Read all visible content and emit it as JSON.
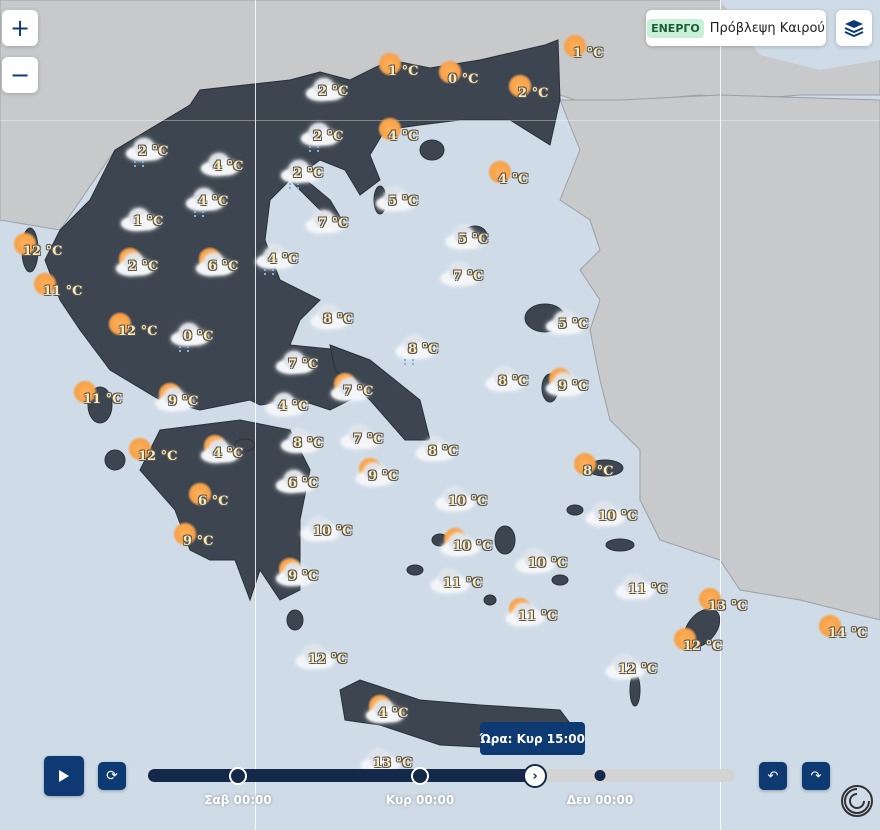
{
  "map": {
    "controls": {
      "zoom_in": "+",
      "zoom_out": "−"
    },
    "status_panel": {
      "badge": "ΕΝΕΡΓΟ",
      "title": "Πρόβλεψη Καιρού",
      "badge_color": "#c8f0d6"
    },
    "layers_icon": "layers-icon",
    "colors": {
      "sea": "#cfdce8",
      "greece_land": "#3d4650",
      "neighbor_land": "#c8c9cb",
      "accent": "#0d3a73"
    },
    "weather": [
      {
        "t": "1 °C",
        "icon": "sun"
      },
      {
        "t": "0 °C",
        "icon": "sun"
      },
      {
        "t": "2 °C",
        "icon": "sun"
      },
      {
        "t": "1 °C",
        "icon": "sun"
      },
      {
        "t": "2 °C",
        "icon": "cloud"
      },
      {
        "t": "2 °C",
        "icon": "rain"
      },
      {
        "t": "4 °C",
        "icon": "sun"
      },
      {
        "t": "2 °C",
        "icon": "rain"
      },
      {
        "t": "4 °C",
        "icon": "cloud"
      },
      {
        "t": "2 °C",
        "icon": "rain"
      },
      {
        "t": "5 °C",
        "icon": "cloud"
      },
      {
        "t": "4 °C",
        "icon": "sun"
      },
      {
        "t": "4 °C",
        "icon": "rain"
      },
      {
        "t": "1 °C",
        "icon": "cloud"
      },
      {
        "t": "7 °C",
        "icon": "cloud"
      },
      {
        "t": "5 °C",
        "icon": "cloud"
      },
      {
        "t": "12 °C",
        "icon": "sun"
      },
      {
        "t": "2 °C",
        "icon": "partly"
      },
      {
        "t": "6 °C",
        "icon": "partly"
      },
      {
        "t": "4 °C",
        "icon": "rain"
      },
      {
        "t": "7 °C",
        "icon": "cloud"
      },
      {
        "t": "11 °C",
        "icon": "sun"
      },
      {
        "t": "12 °C",
        "icon": "sun"
      },
      {
        "t": "0 °C",
        "icon": "rain"
      },
      {
        "t": "8 °C",
        "icon": "cloud"
      },
      {
        "t": "5 °C",
        "icon": "cloud"
      },
      {
        "t": "8 °C",
        "icon": "rain"
      },
      {
        "t": "7 °C",
        "icon": "cloud"
      },
      {
        "t": "8 °C",
        "icon": "cloud"
      },
      {
        "t": "9 °C",
        "icon": "partly"
      },
      {
        "t": "7 °C",
        "icon": "partly"
      },
      {
        "t": "11 °C",
        "icon": "sun"
      },
      {
        "t": "9 °C",
        "icon": "partly"
      },
      {
        "t": "4 °C",
        "icon": "cloud"
      },
      {
        "t": "8 °C",
        "icon": "cloud"
      },
      {
        "t": "7 °C",
        "icon": "cloud"
      },
      {
        "t": "8 °C",
        "icon": "cloud"
      },
      {
        "t": "12 °C",
        "icon": "sun"
      },
      {
        "t": "4 °C",
        "icon": "partly"
      },
      {
        "t": "8 °C",
        "icon": "sun"
      },
      {
        "t": "9 °C",
        "icon": "partly"
      },
      {
        "t": "6 °C",
        "icon": "cloud"
      },
      {
        "t": "10 °C",
        "icon": "cloud"
      },
      {
        "t": "6 °C",
        "icon": "sun"
      },
      {
        "t": "10 °C",
        "icon": "cloud"
      },
      {
        "t": "10 °C",
        "icon": "cloud"
      },
      {
        "t": "10 °C",
        "icon": "partly"
      },
      {
        "t": "9 °C",
        "icon": "sun"
      },
      {
        "t": "10 °C",
        "icon": "cloud"
      },
      {
        "t": "11 °C",
        "icon": "cloud"
      },
      {
        "t": "11 °C",
        "icon": "cloud"
      },
      {
        "t": "9 °C",
        "icon": "partly"
      },
      {
        "t": "11 °C",
        "icon": "partly"
      },
      {
        "t": "13 °C",
        "icon": "sun"
      },
      {
        "t": "12 °C",
        "icon": "sun"
      },
      {
        "t": "14 °C",
        "icon": "sun"
      },
      {
        "t": "12 °C",
        "icon": "cloud"
      },
      {
        "t": "12 °C",
        "icon": "cloud"
      },
      {
        "t": "4 °C",
        "icon": "partly"
      },
      {
        "t": "13 °C",
        "icon": "cloud"
      }
    ]
  },
  "timeline": {
    "tooltip": "Ώρα: Κυρ 15:00",
    "progress_percent": 66,
    "labels": [
      "Σαβ 00:00",
      "Κυρ 00:00",
      "Δευ 00:00"
    ]
  }
}
